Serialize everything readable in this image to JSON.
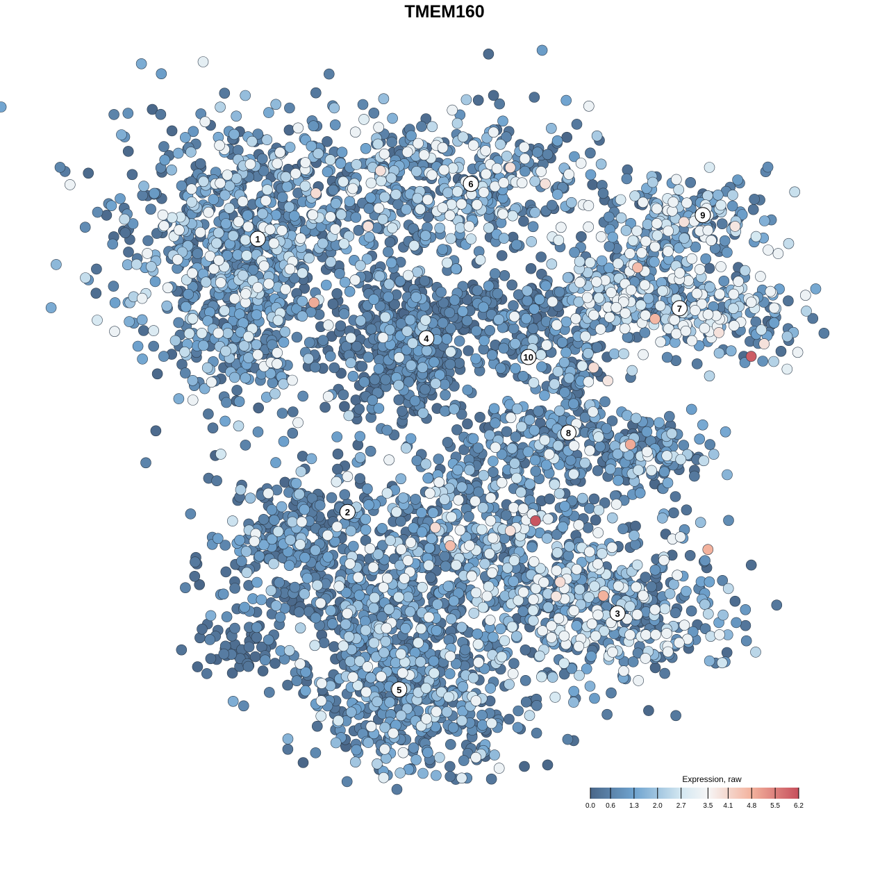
{
  "chart_data": {
    "type": "scatter",
    "title": "TMEM160",
    "xlabel": "",
    "ylabel": "",
    "xlim": [
      0,
      100
    ],
    "ylim": [
      0,
      100
    ],
    "grid": false,
    "axes_visible": false,
    "color_by": "expression",
    "legend": {
      "title": "Expression, raw",
      "placement": "bottom-right",
      "range": [
        0.0,
        6.2
      ],
      "ticks": [
        "0.0",
        "0.6",
        "1.3",
        "2.0",
        "2.7",
        "3.5",
        "4.1",
        "4.8",
        "5.5",
        "6.2"
      ],
      "colors": [
        {
          "value": 0.0,
          "color": "#4a6789"
        },
        {
          "value": 1.3,
          "color": "#6fa3cf"
        },
        {
          "value": 2.7,
          "color": "#d3e7f1"
        },
        {
          "value": 3.5,
          "color": "#f6f6f6"
        },
        {
          "value": 4.8,
          "color": "#f3b29d"
        },
        {
          "value": 6.2,
          "color": "#c64f5c"
        }
      ]
    },
    "cluster_labels": [
      {
        "label": "1",
        "x": 18.4,
        "y": 82.9
      },
      {
        "label": "2",
        "x": 32.3,
        "y": 39.2
      },
      {
        "label": "3",
        "x": 74.1,
        "y": 23.0
      },
      {
        "label": "4",
        "x": 44.5,
        "y": 67.0
      },
      {
        "label": "5",
        "x": 40.3,
        "y": 10.8
      },
      {
        "label": "6",
        "x": 51.4,
        "y": 91.7
      },
      {
        "label": "7",
        "x": 83.7,
        "y": 71.8
      },
      {
        "label": "8",
        "x": 66.5,
        "y": 51.9
      },
      {
        "label": "9",
        "x": 87.3,
        "y": 86.7
      },
      {
        "label": "10",
        "x": 60.3,
        "y": 64.0
      }
    ],
    "cluster_regions": [
      {
        "cluster": "1",
        "x": 16.1,
        "y": 84.4,
        "sx": 9.7,
        "sy": 8.9,
        "n": 700,
        "mean_expr": 1.4
      },
      {
        "cluster": "1",
        "x": 16.1,
        "y": 67.8,
        "sx": 5.4,
        "sy": 6.7,
        "n": 250,
        "mean_expr": 1.2
      },
      {
        "cluster": "6",
        "x": 48.4,
        "y": 91.1,
        "sx": 11.8,
        "sy": 5.6,
        "n": 500,
        "mean_expr": 1.5
      },
      {
        "cluster": "4",
        "x": 40.9,
        "y": 66.7,
        "sx": 5.9,
        "sy": 6.1,
        "n": 450,
        "mean_expr": 0.6
      },
      {
        "cluster": "10",
        "x": 60.2,
        "y": 65.6,
        "sx": 3.2,
        "sy": 4.4,
        "n": 80,
        "mean_expr": 1.0
      },
      {
        "cluster": "10",
        "x": 58.1,
        "y": 72.2,
        "sx": 7.5,
        "sy": 2.2,
        "n": 100,
        "mean_expr": 0.8
      },
      {
        "cluster": "9",
        "x": 84.9,
        "y": 85.6,
        "sx": 6.5,
        "sy": 3.9,
        "n": 180,
        "mean_expr": 1.8
      },
      {
        "cluster": "7",
        "x": 84.9,
        "y": 71.1,
        "sx": 8.6,
        "sy": 3.9,
        "n": 280,
        "mean_expr": 2.0
      },
      {
        "cluster": "7",
        "x": 74.2,
        "y": 75.6,
        "sx": 4.3,
        "sy": 3.3,
        "n": 120,
        "mean_expr": 1.6
      },
      {
        "cluster": "8",
        "x": 67.7,
        "y": 59.4,
        "sx": 2.7,
        "sy": 5.6,
        "n": 100,
        "mean_expr": 1.2
      },
      {
        "cluster": "8",
        "x": 77.4,
        "y": 48.9,
        "sx": 5.4,
        "sy": 3.3,
        "n": 150,
        "mean_expr": 1.1
      },
      {
        "cluster": "8",
        "x": 60.2,
        "y": 50.0,
        "sx": 5.4,
        "sy": 2.8,
        "n": 120,
        "mean_expr": 0.8
      },
      {
        "cluster": "2",
        "x": 23.7,
        "y": 34.4,
        "sx": 6.5,
        "sy": 6.7,
        "n": 300,
        "mean_expr": 0.7
      },
      {
        "cluster": "2",
        "x": 15.1,
        "y": 17.8,
        "sx": 3.2,
        "sy": 2.2,
        "n": 50,
        "mean_expr": 0.3
      },
      {
        "cluster": "3",
        "x": 51.6,
        "y": 34.4,
        "sx": 10.8,
        "sy": 8.9,
        "n": 600,
        "mean_expr": 1.4
      },
      {
        "cluster": "3",
        "x": 73.1,
        "y": 24.4,
        "sx": 9.7,
        "sy": 6.1,
        "n": 450,
        "mean_expr": 1.5
      },
      {
        "cluster": "5",
        "x": 43.0,
        "y": 10.0,
        "sx": 9.7,
        "sy": 6.1,
        "n": 450,
        "mean_expr": 1.1
      },
      {
        "cluster": "5",
        "x": 38.7,
        "y": 21.1,
        "sx": 6.5,
        "sy": 5.6,
        "n": 250,
        "mean_expr": 0.9
      }
    ],
    "high_expression_points": [
      {
        "x": 27.1,
        "y": 72.7,
        "expr": 4.9
      },
      {
        "x": 27.4,
        "y": 90.2,
        "expr": 4.0
      },
      {
        "x": 37.4,
        "y": 93.8,
        "expr": 3.9
      },
      {
        "x": 35.5,
        "y": 84.9,
        "expr": 3.9
      },
      {
        "x": 57.5,
        "y": 94.3,
        "expr": 3.9
      },
      {
        "x": 62.9,
        "y": 91.7,
        "expr": 3.9
      },
      {
        "x": 84.4,
        "y": 85.6,
        "expr": 3.9
      },
      {
        "x": 92.3,
        "y": 84.9,
        "expr": 3.8
      },
      {
        "x": 77.2,
        "y": 78.3,
        "expr": 4.6
      },
      {
        "x": 79.9,
        "y": 70.1,
        "expr": 4.7
      },
      {
        "x": 94.8,
        "y": 64.1,
        "expr": 6.0
      },
      {
        "x": 96.8,
        "y": 66.1,
        "expr": 3.9
      },
      {
        "x": 89.8,
        "y": 67.9,
        "expr": 3.9
      },
      {
        "x": 70.4,
        "y": 62.3,
        "expr": 4.0
      },
      {
        "x": 72.6,
        "y": 60.2,
        "expr": 3.8
      },
      {
        "x": 76.1,
        "y": 50.0,
        "expr": 4.9
      },
      {
        "x": 61.4,
        "y": 37.8,
        "expr": 6.1
      },
      {
        "x": 57.5,
        "y": 36.2,
        "expr": 3.9
      },
      {
        "x": 45.9,
        "y": 36.7,
        "expr": 4.0
      },
      {
        "x": 48.2,
        "y": 33.8,
        "expr": 4.6
      },
      {
        "x": 71.9,
        "y": 25.8,
        "expr": 4.8
      },
      {
        "x": 65.2,
        "y": 28.0,
        "expr": 4.0
      },
      {
        "x": 64.6,
        "y": 25.7,
        "expr": 3.8
      },
      {
        "x": 88.1,
        "y": 33.2,
        "expr": 4.8
      }
    ]
  }
}
